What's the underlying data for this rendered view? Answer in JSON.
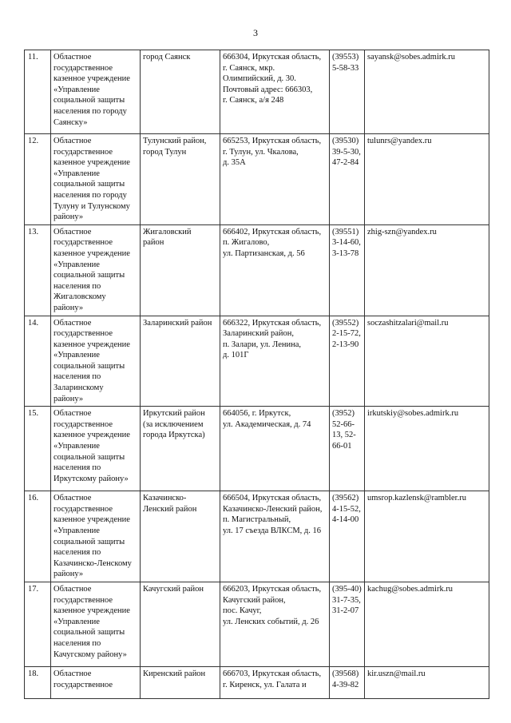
{
  "page_number": "3",
  "rows": [
    {
      "num": "11.",
      "org": "Областное\nгосударственное\nказенное учреждение\n«Управление\nсоциальной защиты\nнаселения по городу\nСаянску»",
      "area": "город Саянск",
      "address": "666304, Иркутская область,\nг. Саянск, мкр.\nОлимпийский, д. 30.\nПочтовый адрес: 666303,\nг. Саянск, а/я 248",
      "phone": "(39553)\n5-58-33",
      "email": "sayansk@sobes.admirk.ru"
    },
    {
      "num": "12.",
      "org": "Областное\nгосударственное\nказенное учреждение\n«Управление\nсоциальной защиты\nнаселения по городу\nТулуну и Тулунскому\nрайону»",
      "area": "Тулунский район,\nгород Тулун",
      "address": "665253, Иркутская область,\nг. Тулун, ул. Чкалова,\nд. 35А",
      "phone": "(39530)\n39-5-30,\n47-2-84",
      "email": "tulunrs@yandex.ru"
    },
    {
      "num": "13.",
      "org": "Областное\nгосударственное\nказенное учреждение\n«Управление\nсоциальной защиты\nнаселения по\nЖигаловскому\nрайону»",
      "area": "Жигаловский\nрайон",
      "address": "666402, Иркутская область,\nп. Жигалово,\nул. Партизанская, д. 56",
      "phone": "(39551)\n3-14-60,\n3-13-78",
      "email": "zhig-szn@yandex.ru"
    },
    {
      "num": "14.",
      "org": "Областное\nгосударственное\nказенное учреждение\n«Управление\nсоциальной защиты\nнаселения по\nЗаларинскому\nрайону»",
      "area": "Заларинский район",
      "address": "666322, Иркутская область,\nЗаларинский район,\nп. Залари, ул. Ленина,\nд. 101Г",
      "phone": "(39552)\n2-15-72,\n2-13-90",
      "email": "soczashitzalari@mail.ru"
    },
    {
      "num": "15.",
      "org": "Областное\nгосударственное\nказенное учреждение\n«Управление\nсоциальной защиты\nнаселения по\nИркутскому району»",
      "area": "Иркутский район\n(за исключением\nгорода Иркутска)",
      "address": "664056, г. Иркутск,\nул. Академическая, д. 74",
      "phone": "(3952)\n52-66-\n13, 52-\n66-01",
      "email": "irkutskiy@sobes.admirk.ru"
    },
    {
      "num": "16.",
      "org": "Областное\nгосударственное\nказенное учреждение\n«Управление\nсоциальной защиты\nнаселения по\nКазачинско-Ленскому\nрайону»",
      "area": "Казачинско-\nЛенский район",
      "address": "666504, Иркутская область,\nКазачинско-Ленский район,\nп. Магистральный,\nул. 17 съезда ВЛКСМ, д. 16",
      "phone": "(39562)\n4-15-52,\n4-14-00",
      "email": "umsrop.kazlensk@rambler.ru"
    },
    {
      "num": "17.",
      "org": "Областное\nгосударственное\nказенное учреждение\n«Управление\nсоциальной защиты\nнаселения по\nКачугскому району»",
      "area": "Качугский район",
      "address": "666203, Иркутская область,\nКачугский район,\nпос. Качуг,\nул. Ленских событий, д. 26",
      "phone": "(395-40)\n31-7-35,\n31-2-07",
      "email": "kachug@sobes.admirk.ru"
    },
    {
      "num": "18.",
      "org": "Областное\nгосударственное",
      "area": "Киренский район",
      "address": "666703, Иркутская область,\nг. Киренск, ул. Галата и",
      "phone": "(39568)\n4-39-82",
      "email": "kir.uszn@mail.ru"
    }
  ]
}
